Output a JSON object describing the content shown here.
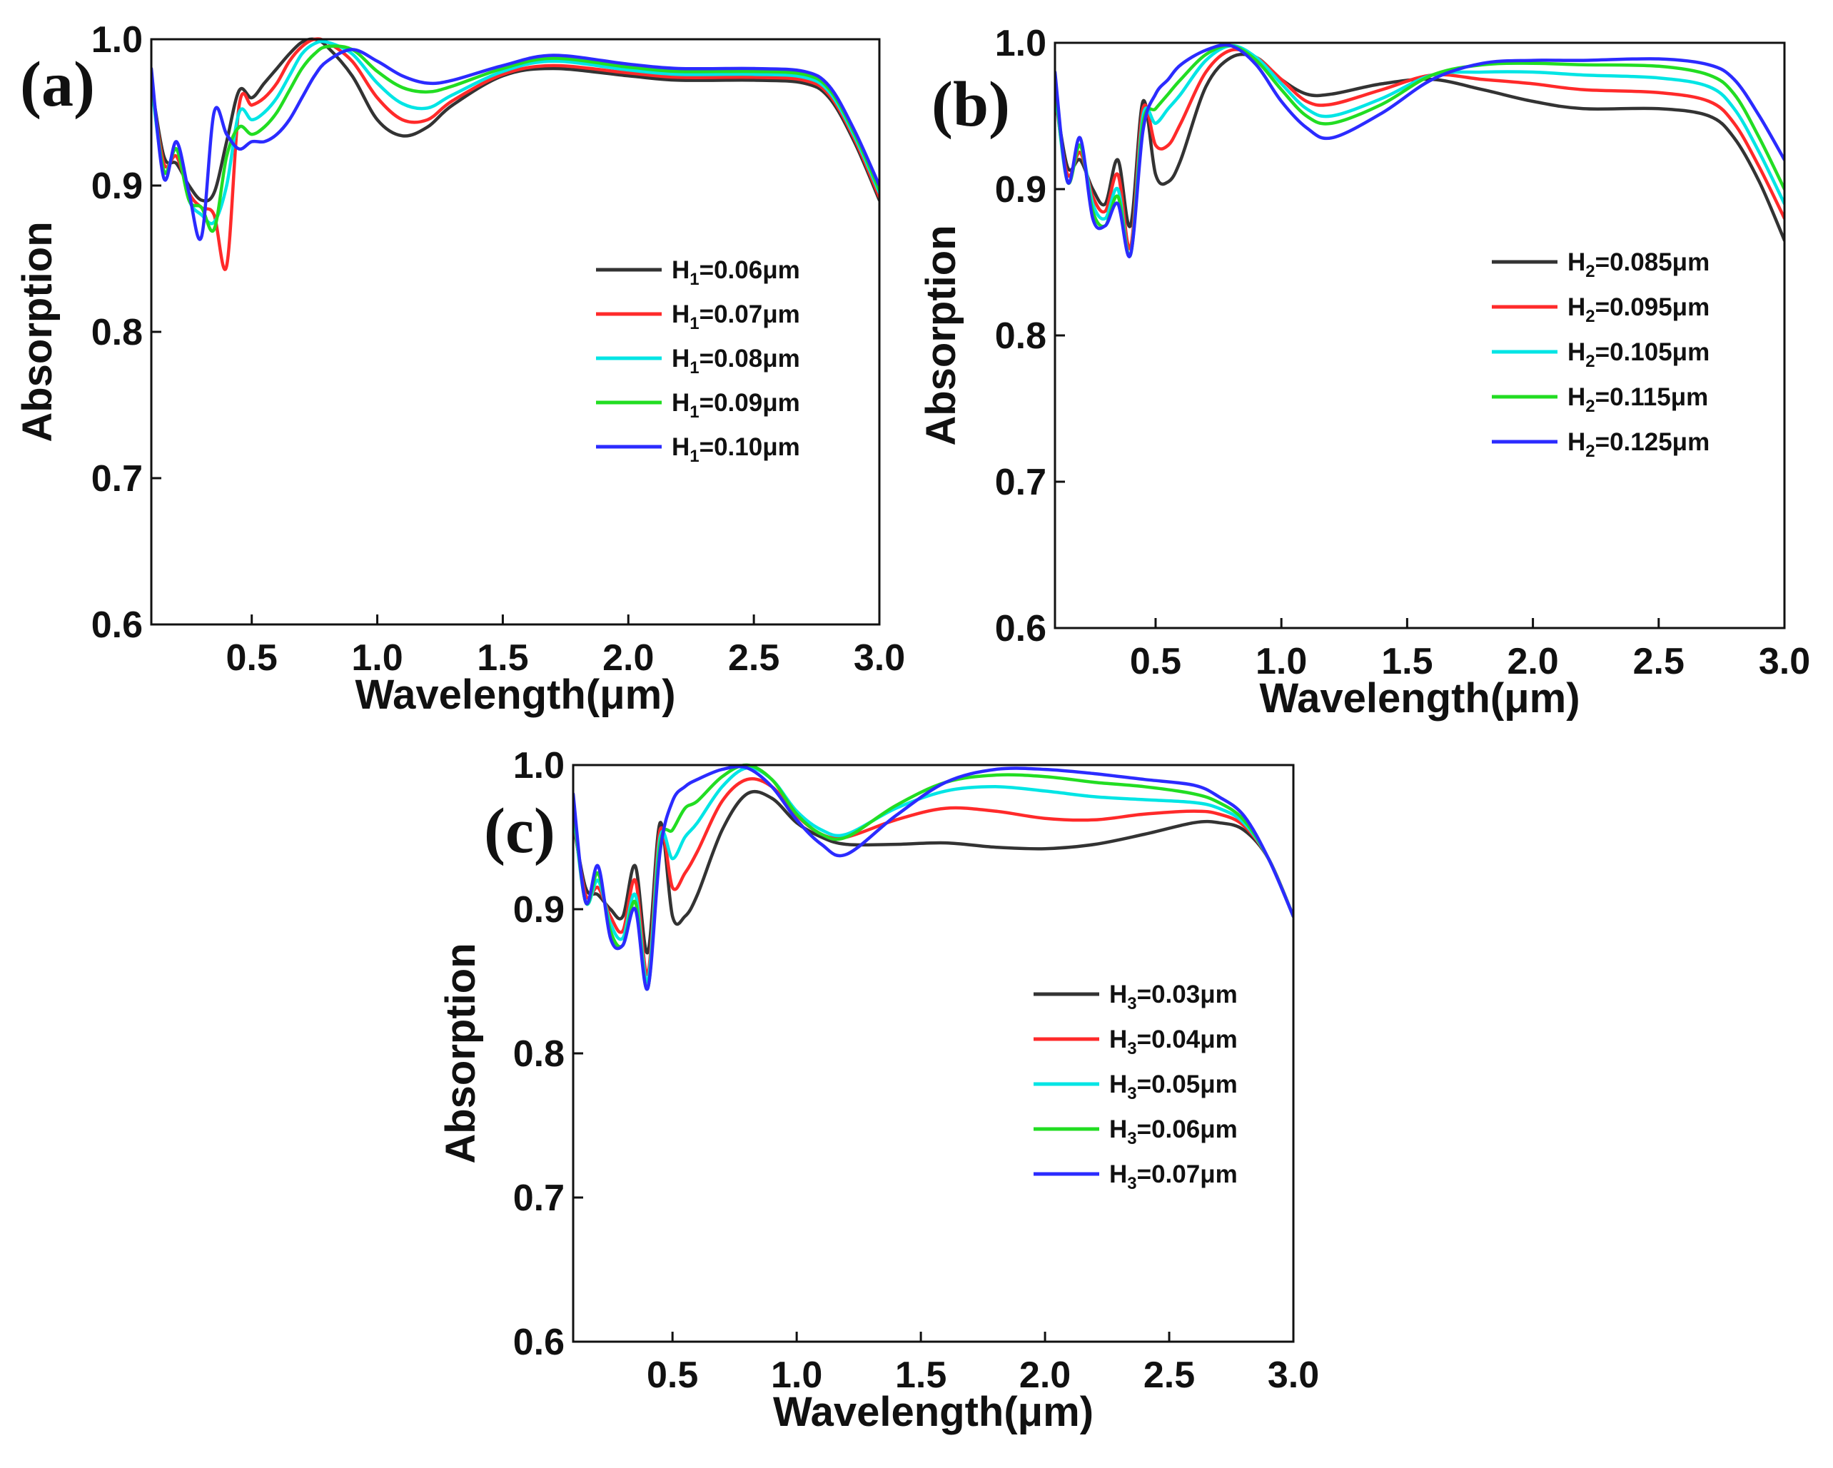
{
  "chart_data": [
    {
      "type": "line",
      "panel_label": "(a)",
      "xlabel": "Wavelength(μm)",
      "ylabel": "Absorption",
      "xlim": [
        0.1,
        3.0
      ],
      "ylim": [
        0.6,
        1.0
      ],
      "xticks": [
        "0.5",
        "1.0",
        "1.5",
        "2.0",
        "2.5",
        "3.0"
      ],
      "yticks": [
        "0.6",
        "0.7",
        "0.8",
        "0.9",
        "1.0"
      ],
      "legend_position": "center-right",
      "series": [
        {
          "name": "H1=0.06μm",
          "sym": "H",
          "sub": "1",
          "val": "=0.06μm",
          "color": "#333333",
          "x": [
            0.1,
            0.15,
            0.2,
            0.25,
            0.3,
            0.35,
            0.4,
            0.45,
            0.5,
            0.55,
            0.6,
            0.65,
            0.7,
            0.75,
            0.8,
            0.9,
            1.0,
            1.1,
            1.2,
            1.3,
            1.5,
            1.7,
            2.0,
            2.2,
            2.5,
            2.7,
            2.8,
            2.9,
            3.0
          ],
          "y": [
            0.97,
            0.92,
            0.915,
            0.9,
            0.89,
            0.895,
            0.93,
            0.965,
            0.96,
            0.97,
            0.98,
            0.99,
            0.998,
            1.0,
            0.995,
            0.975,
            0.945,
            0.934,
            0.94,
            0.955,
            0.975,
            0.98,
            0.975,
            0.972,
            0.972,
            0.97,
            0.96,
            0.93,
            0.89
          ]
        },
        {
          "name": "H1=0.07μm",
          "sym": "H",
          "sub": "1",
          "val": "=0.07μm",
          "color": "#ff2a2a",
          "x": [
            0.1,
            0.15,
            0.2,
            0.25,
            0.3,
            0.35,
            0.4,
            0.45,
            0.5,
            0.55,
            0.6,
            0.65,
            0.7,
            0.75,
            0.8,
            0.9,
            1.0,
            1.1,
            1.2,
            1.3,
            1.5,
            1.7,
            2.0,
            2.2,
            2.5,
            2.7,
            2.8,
            2.9,
            3.0
          ],
          "y": [
            0.97,
            0.915,
            0.92,
            0.895,
            0.885,
            0.88,
            0.845,
            0.955,
            0.955,
            0.96,
            0.97,
            0.985,
            0.995,
            1.0,
            0.998,
            0.985,
            0.96,
            0.945,
            0.945,
            0.958,
            0.976,
            0.982,
            0.977,
            0.974,
            0.974,
            0.972,
            0.962,
            0.932,
            0.892
          ]
        },
        {
          "name": "H1=0.08μm",
          "sym": "H",
          "sub": "1",
          "val": "=0.08μm",
          "color": "#00e5e5",
          "x": [
            0.1,
            0.15,
            0.2,
            0.25,
            0.3,
            0.35,
            0.4,
            0.45,
            0.5,
            0.55,
            0.6,
            0.65,
            0.7,
            0.75,
            0.8,
            0.9,
            1.0,
            1.1,
            1.2,
            1.3,
            1.5,
            1.7,
            2.0,
            2.2,
            2.5,
            2.7,
            2.8,
            2.9,
            3.0
          ],
          "y": [
            0.97,
            0.91,
            0.925,
            0.89,
            0.88,
            0.875,
            0.9,
            0.95,
            0.945,
            0.95,
            0.96,
            0.975,
            0.99,
            0.997,
            0.998,
            0.99,
            0.97,
            0.956,
            0.953,
            0.962,
            0.978,
            0.985,
            0.979,
            0.976,
            0.976,
            0.974,
            0.964,
            0.934,
            0.895
          ]
        },
        {
          "name": "H1=0.09μm",
          "sym": "H",
          "sub": "1",
          "val": "=0.09μm",
          "color": "#22dd22",
          "x": [
            0.1,
            0.15,
            0.2,
            0.25,
            0.3,
            0.35,
            0.4,
            0.45,
            0.5,
            0.55,
            0.6,
            0.65,
            0.7,
            0.75,
            0.8,
            0.9,
            1.0,
            1.1,
            1.2,
            1.3,
            1.5,
            1.7,
            2.0,
            2.2,
            2.5,
            2.7,
            2.8,
            2.9,
            3.0
          ],
          "y": [
            0.975,
            0.91,
            0.925,
            0.89,
            0.885,
            0.87,
            0.92,
            0.94,
            0.935,
            0.94,
            0.95,
            0.965,
            0.98,
            0.99,
            0.995,
            0.993,
            0.978,
            0.967,
            0.964,
            0.968,
            0.98,
            0.987,
            0.981,
            0.978,
            0.978,
            0.976,
            0.966,
            0.936,
            0.897
          ]
        },
        {
          "name": "H1=0.10μm",
          "sym": "H",
          "sub": "1",
          "val": "=0.10μm",
          "color": "#2b2bff",
          "x": [
            0.1,
            0.15,
            0.2,
            0.25,
            0.3,
            0.35,
            0.4,
            0.45,
            0.5,
            0.55,
            0.6,
            0.65,
            0.7,
            0.75,
            0.8,
            0.9,
            1.0,
            1.1,
            1.2,
            1.3,
            1.5,
            1.7,
            2.0,
            2.2,
            2.5,
            2.7,
            2.8,
            2.9,
            3.0
          ],
          "y": [
            0.98,
            0.905,
            0.93,
            0.895,
            0.865,
            0.95,
            0.935,
            0.925,
            0.93,
            0.93,
            0.935,
            0.945,
            0.96,
            0.975,
            0.985,
            0.993,
            0.985,
            0.975,
            0.97,
            0.972,
            0.982,
            0.989,
            0.983,
            0.98,
            0.98,
            0.978,
            0.968,
            0.938,
            0.9
          ]
        }
      ]
    },
    {
      "type": "line",
      "panel_label": "(b)",
      "xlabel": "Wavelength(μm)",
      "ylabel": "Absorption",
      "xlim": [
        0.1,
        3.0
      ],
      "ylim": [
        0.6,
        1.0
      ],
      "xticks": [
        "0.5",
        "1.0",
        "1.5",
        "2.0",
        "2.5",
        "3.0"
      ],
      "yticks": [
        "0.6",
        "0.7",
        "0.8",
        "0.9",
        "1.0"
      ],
      "legend_position": "right",
      "series": [
        {
          "name": "H2=0.085μm",
          "sym": "H",
          "sub": "2",
          "val": "=0.085μm",
          "color": "#333333",
          "x": [
            0.1,
            0.15,
            0.2,
            0.25,
            0.3,
            0.35,
            0.4,
            0.45,
            0.5,
            0.55,
            0.6,
            0.7,
            0.8,
            0.9,
            1.0,
            1.1,
            1.2,
            1.4,
            1.6,
            1.8,
            2.0,
            2.2,
            2.5,
            2.7,
            2.8,
            2.9,
            3.0
          ],
          "y": [
            0.965,
            0.915,
            0.92,
            0.9,
            0.89,
            0.92,
            0.875,
            0.96,
            0.91,
            0.905,
            0.92,
            0.97,
            0.99,
            0.99,
            0.975,
            0.965,
            0.965,
            0.972,
            0.975,
            0.968,
            0.96,
            0.955,
            0.955,
            0.95,
            0.935,
            0.905,
            0.865
          ]
        },
        {
          "name": "H2=0.095μm",
          "sym": "H",
          "sub": "2",
          "val": "=0.095μm",
          "color": "#ff2a2a",
          "x": [
            0.1,
            0.15,
            0.2,
            0.25,
            0.3,
            0.35,
            0.4,
            0.45,
            0.5,
            0.55,
            0.6,
            0.7,
            0.8,
            0.9,
            1.0,
            1.1,
            1.2,
            1.4,
            1.6,
            1.8,
            2.0,
            2.2,
            2.5,
            2.7,
            2.8,
            2.9,
            3.0
          ],
          "y": [
            0.965,
            0.91,
            0.925,
            0.895,
            0.885,
            0.91,
            0.86,
            0.955,
            0.93,
            0.93,
            0.945,
            0.98,
            0.995,
            0.99,
            0.975,
            0.96,
            0.958,
            0.968,
            0.978,
            0.975,
            0.972,
            0.968,
            0.966,
            0.96,
            0.945,
            0.915,
            0.88
          ]
        },
        {
          "name": "H2=0.105μm",
          "sym": "H",
          "sub": "2",
          "val": "=0.105μm",
          "color": "#00e5e5",
          "x": [
            0.1,
            0.15,
            0.2,
            0.25,
            0.3,
            0.35,
            0.4,
            0.45,
            0.5,
            0.55,
            0.6,
            0.7,
            0.8,
            0.9,
            1.0,
            1.1,
            1.2,
            1.4,
            1.6,
            1.8,
            2.0,
            2.2,
            2.5,
            2.7,
            2.8,
            2.9,
            3.0
          ],
          "y": [
            0.97,
            0.905,
            0.93,
            0.89,
            0.88,
            0.9,
            0.855,
            0.95,
            0.945,
            0.955,
            0.965,
            0.988,
            0.998,
            0.99,
            0.972,
            0.955,
            0.95,
            0.962,
            0.978,
            0.98,
            0.98,
            0.978,
            0.976,
            0.97,
            0.955,
            0.925,
            0.89
          ]
        },
        {
          "name": "H2=0.115μm",
          "sym": "H",
          "sub": "2",
          "val": "=0.115μm",
          "color": "#22dd22",
          "x": [
            0.1,
            0.15,
            0.2,
            0.25,
            0.3,
            0.35,
            0.4,
            0.45,
            0.5,
            0.55,
            0.6,
            0.7,
            0.8,
            0.9,
            1.0,
            1.1,
            1.2,
            1.4,
            1.6,
            1.8,
            2.0,
            2.2,
            2.5,
            2.7,
            2.8,
            2.9,
            3.0
          ],
          "y": [
            0.975,
            0.905,
            0.93,
            0.885,
            0.875,
            0.895,
            0.855,
            0.945,
            0.955,
            0.965,
            0.975,
            0.992,
            0.998,
            0.988,
            0.968,
            0.95,
            0.945,
            0.958,
            0.978,
            0.985,
            0.986,
            0.985,
            0.984,
            0.978,
            0.965,
            0.935,
            0.9
          ]
        },
        {
          "name": "H2=0.125μm",
          "sym": "H",
          "sub": "2",
          "val": "=0.125μm",
          "color": "#2b2bff",
          "x": [
            0.1,
            0.15,
            0.2,
            0.25,
            0.3,
            0.35,
            0.4,
            0.45,
            0.5,
            0.55,
            0.6,
            0.7,
            0.8,
            0.9,
            1.0,
            1.1,
            1.2,
            1.4,
            1.6,
            1.8,
            2.0,
            2.2,
            2.5,
            2.7,
            2.8,
            2.9,
            3.0
          ],
          "y": [
            0.98,
            0.905,
            0.935,
            0.88,
            0.875,
            0.89,
            0.855,
            0.94,
            0.965,
            0.975,
            0.985,
            0.995,
            0.998,
            0.985,
            0.96,
            0.942,
            0.935,
            0.952,
            0.975,
            0.986,
            0.988,
            0.988,
            0.989,
            0.985,
            0.975,
            0.95,
            0.92
          ]
        }
      ]
    },
    {
      "type": "line",
      "panel_label": "(c)",
      "xlabel": "Wavelength(μm)",
      "ylabel": "Absorption",
      "xlim": [
        0.1,
        3.0
      ],
      "ylim": [
        0.6,
        1.0
      ],
      "xticks": [
        "0.5",
        "1.0",
        "1.5",
        "2.0",
        "2.5",
        "3.0"
      ],
      "yticks": [
        "0.6",
        "0.7",
        "0.8",
        "0.9",
        "1.0"
      ],
      "legend_position": "center-right",
      "series": [
        {
          "name": "H3=0.03μm",
          "sym": "H",
          "sub": "3",
          "val": "=0.03μm",
          "color": "#333333",
          "x": [
            0.1,
            0.15,
            0.2,
            0.25,
            0.3,
            0.35,
            0.4,
            0.45,
            0.5,
            0.55,
            0.6,
            0.7,
            0.8,
            0.9,
            1.0,
            1.1,
            1.2,
            1.4,
            1.6,
            1.8,
            2.0,
            2.2,
            2.4,
            2.6,
            2.7,
            2.8,
            2.9,
            3.0
          ],
          "y": [
            0.96,
            0.915,
            0.91,
            0.9,
            0.895,
            0.93,
            0.87,
            0.96,
            0.895,
            0.895,
            0.91,
            0.955,
            0.98,
            0.977,
            0.96,
            0.95,
            0.945,
            0.945,
            0.946,
            0.943,
            0.942,
            0.945,
            0.952,
            0.96,
            0.96,
            0.955,
            0.935,
            0.895
          ]
        },
        {
          "name": "H3=0.04μm",
          "sym": "H",
          "sub": "3",
          "val": "=0.04μm",
          "color": "#ff2a2a",
          "x": [
            0.1,
            0.15,
            0.2,
            0.25,
            0.3,
            0.35,
            0.4,
            0.45,
            0.5,
            0.55,
            0.6,
            0.7,
            0.8,
            0.9,
            1.0,
            1.1,
            1.2,
            1.4,
            1.6,
            1.8,
            2.0,
            2.2,
            2.4,
            2.6,
            2.7,
            2.8,
            2.9,
            3.0
          ],
          "y": [
            0.965,
            0.91,
            0.915,
            0.895,
            0.885,
            0.92,
            0.855,
            0.955,
            0.915,
            0.925,
            0.94,
            0.975,
            0.99,
            0.985,
            0.965,
            0.952,
            0.95,
            0.962,
            0.97,
            0.968,
            0.963,
            0.962,
            0.966,
            0.968,
            0.966,
            0.958,
            0.935,
            0.895
          ]
        },
        {
          "name": "H3=0.05μm",
          "sym": "H",
          "sub": "3",
          "val": "=0.05μm",
          "color": "#00e5e5",
          "x": [
            0.1,
            0.15,
            0.2,
            0.25,
            0.3,
            0.35,
            0.4,
            0.45,
            0.5,
            0.55,
            0.6,
            0.7,
            0.8,
            0.9,
            1.0,
            1.1,
            1.2,
            1.4,
            1.6,
            1.8,
            2.0,
            2.2,
            2.4,
            2.6,
            2.7,
            2.8,
            2.9,
            3.0
          ],
          "y": [
            0.97,
            0.905,
            0.92,
            0.89,
            0.88,
            0.91,
            0.85,
            0.95,
            0.935,
            0.95,
            0.96,
            0.985,
            0.998,
            0.99,
            0.968,
            0.955,
            0.952,
            0.97,
            0.982,
            0.985,
            0.982,
            0.978,
            0.976,
            0.974,
            0.97,
            0.96,
            0.935,
            0.895
          ]
        },
        {
          "name": "H3=0.06μm",
          "sym": "H",
          "sub": "3",
          "val": "=0.06μm",
          "color": "#22dd22",
          "x": [
            0.1,
            0.15,
            0.2,
            0.25,
            0.3,
            0.35,
            0.4,
            0.45,
            0.5,
            0.55,
            0.6,
            0.7,
            0.8,
            0.9,
            1.0,
            1.1,
            1.2,
            1.4,
            1.6,
            1.8,
            2.0,
            2.2,
            2.4,
            2.6,
            2.7,
            2.8,
            2.9,
            3.0
          ],
          "y": [
            0.975,
            0.905,
            0.925,
            0.885,
            0.875,
            0.905,
            0.845,
            0.945,
            0.955,
            0.97,
            0.975,
            0.992,
            1.0,
            0.99,
            0.966,
            0.952,
            0.95,
            0.972,
            0.988,
            0.993,
            0.992,
            0.988,
            0.985,
            0.98,
            0.974,
            0.962,
            0.935,
            0.895
          ]
        },
        {
          "name": "H3=0.07μm",
          "sym": "H",
          "sub": "3",
          "val": "=0.07μm",
          "color": "#2b2bff",
          "x": [
            0.1,
            0.15,
            0.2,
            0.25,
            0.3,
            0.35,
            0.4,
            0.45,
            0.5,
            0.55,
            0.6,
            0.7,
            0.8,
            0.9,
            1.0,
            1.1,
            1.2,
            1.4,
            1.6,
            1.8,
            2.0,
            2.2,
            2.4,
            2.6,
            2.7,
            2.8,
            2.9,
            3.0
          ],
          "y": [
            0.98,
            0.905,
            0.93,
            0.88,
            0.875,
            0.9,
            0.845,
            0.94,
            0.975,
            0.985,
            0.99,
            0.997,
            0.998,
            0.985,
            0.962,
            0.945,
            0.938,
            0.965,
            0.988,
            0.997,
            0.997,
            0.994,
            0.99,
            0.986,
            0.978,
            0.965,
            0.935,
            0.895
          ]
        }
      ]
    }
  ]
}
